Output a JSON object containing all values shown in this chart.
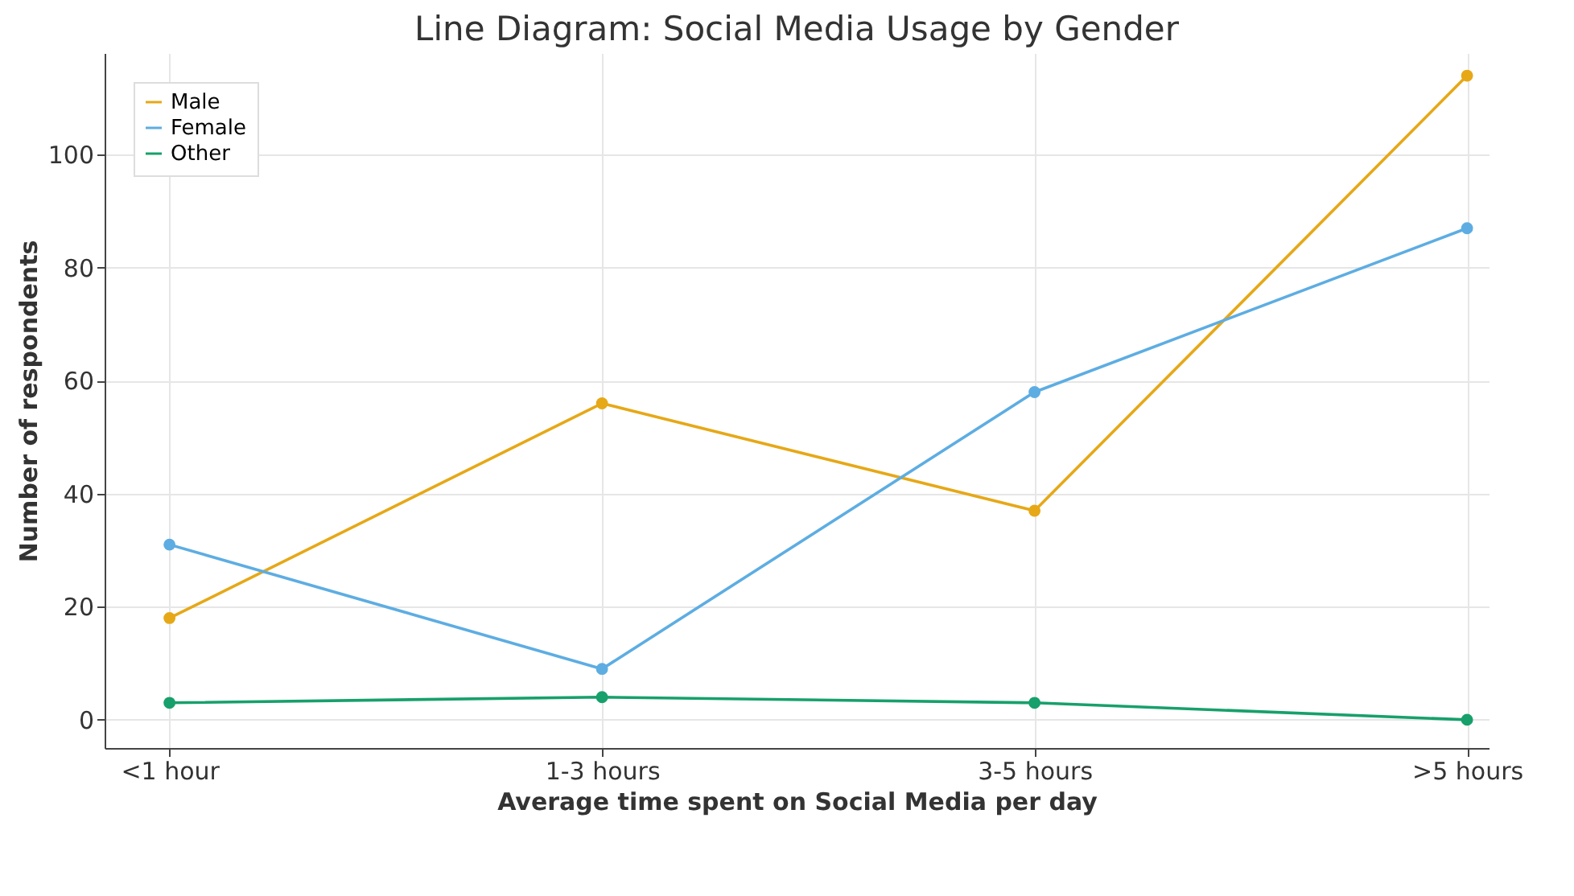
{
  "chart_data": {
    "type": "line",
    "title": "Line Diagram: Social Media Usage by Gender",
    "xlabel": "Average time spent on Social Media per day",
    "ylabel": "Number of respondents",
    "categories": [
      "<1 hour",
      "1-3 hours",
      "3-5 hours",
      ">5 hours"
    ],
    "series": [
      {
        "name": "Male",
        "color": "#e6a817",
        "values": [
          18,
          56,
          37,
          114
        ]
      },
      {
        "name": "Female",
        "color": "#5dade2",
        "values": [
          31,
          9,
          58,
          87
        ]
      },
      {
        "name": "Other",
        "color": "#17a06b",
        "values": [
          3,
          4,
          3,
          0
        ]
      }
    ],
    "ylim": [
      -5,
      118
    ],
    "yticks": [
      0,
      20,
      40,
      60,
      80,
      100
    ],
    "grid": true,
    "legend": "top left",
    "marker": "circle",
    "line_style": "solid"
  }
}
